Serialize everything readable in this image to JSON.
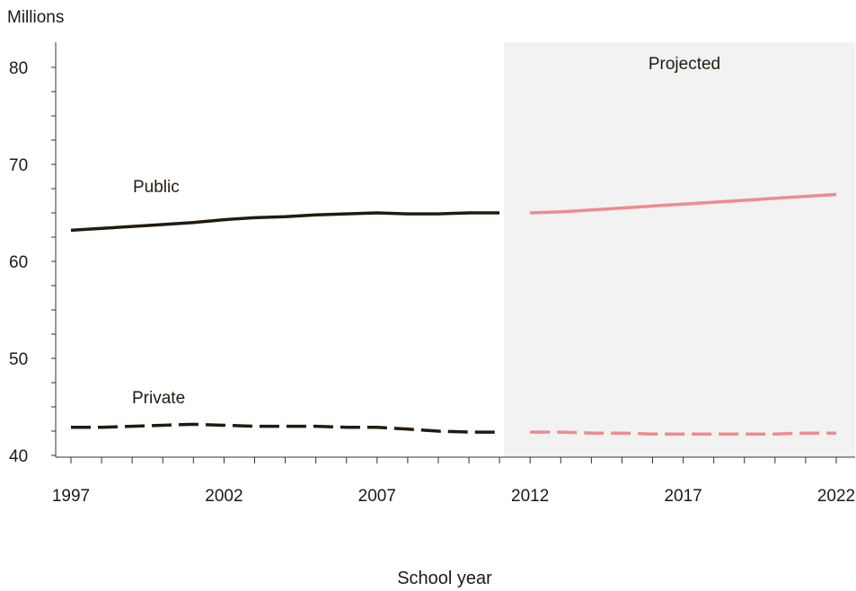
{
  "chart_data": {
    "type": "line",
    "xlabel": "School year",
    "ylabel": "Millions",
    "xlim": [
      1997,
      2022
    ],
    "ylim": [
      40,
      80
    ],
    "x_ticks": [
      1997,
      2002,
      2007,
      2012,
      2017,
      2022
    ],
    "y_ticks": [
      40,
      50,
      60,
      70,
      80
    ],
    "projected_from": 2011,
    "projected_label": "Projected",
    "colors": {
      "actual": "#231a0e",
      "projected": "#f08a8f",
      "projection_bg": "#f2f2f2"
    },
    "series": [
      {
        "name": "Public",
        "style": "solid",
        "actual": {
          "x": [
            1997,
            1998,
            1999,
            2000,
            2001,
            2002,
            2003,
            2004,
            2005,
            2006,
            2007,
            2008,
            2009,
            2010,
            2011
          ],
          "y": [
            63.2,
            63.4,
            63.6,
            63.8,
            64.0,
            64.3,
            64.5,
            64.6,
            64.8,
            64.9,
            65.0,
            64.9,
            64.9,
            65.0,
            65.0
          ]
        },
        "projected": {
          "x": [
            2012,
            2013,
            2014,
            2015,
            2016,
            2017,
            2018,
            2019,
            2020,
            2021,
            2022
          ],
          "y": [
            65.0,
            65.1,
            65.3,
            65.5,
            65.7,
            65.9,
            66.1,
            66.3,
            66.5,
            66.7,
            66.9
          ]
        }
      },
      {
        "name": "Private",
        "style": "dashed",
        "actual": {
          "x": [
            1997,
            1998,
            1999,
            2000,
            2001,
            2002,
            2003,
            2004,
            2005,
            2006,
            2007,
            2008,
            2009,
            2010,
            2011
          ],
          "y": [
            42.9,
            42.9,
            43.0,
            43.1,
            43.2,
            43.1,
            43.0,
            43.0,
            43.0,
            42.9,
            42.9,
            42.7,
            42.5,
            42.4,
            42.4
          ]
        },
        "projected": {
          "x": [
            2012,
            2013,
            2014,
            2015,
            2016,
            2017,
            2018,
            2019,
            2020,
            2021,
            2022
          ],
          "y": [
            42.4,
            42.4,
            42.3,
            42.3,
            42.2,
            42.2,
            42.2,
            42.2,
            42.2,
            42.3,
            42.3
          ]
        }
      }
    ]
  }
}
